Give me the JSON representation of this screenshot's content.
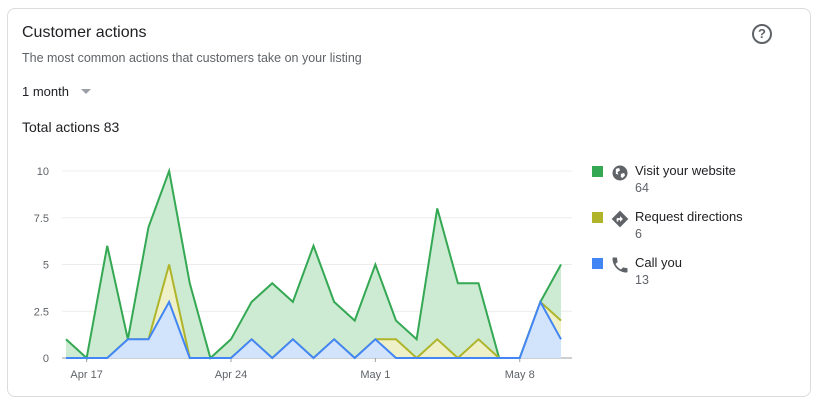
{
  "card": {
    "title": "Customer actions",
    "subtitle": "The most common actions that customers take on your listing",
    "help_icon": "help-circle-icon",
    "help_glyph": "?",
    "period_label": "1 month",
    "total_label": "Total actions 83"
  },
  "chart_data": {
    "type": "area",
    "title": "",
    "x": [
      "Apr 16",
      "Apr 17",
      "Apr 18",
      "Apr 19",
      "Apr 20",
      "Apr 21",
      "Apr 22",
      "Apr 23",
      "Apr 24",
      "Apr 25",
      "Apr 26",
      "Apr 27",
      "Apr 28",
      "Apr 29",
      "Apr 30",
      "May 1",
      "May 2",
      "May 3",
      "May 4",
      "May 5",
      "May 6",
      "May 7",
      "May 8",
      "May 9",
      "May 10"
    ],
    "x_tick_labels": [
      "Apr 17",
      "Apr 24",
      "May 1",
      "May 8"
    ],
    "y_tick_labels": [
      "0",
      "2.5",
      "5",
      "7.5",
      "10"
    ],
    "ylim": [
      0,
      10
    ],
    "grid": true,
    "legend_position": "right",
    "series": [
      {
        "name": "Visit your website",
        "color": "#34a853",
        "fill": "#cdebd3",
        "values": [
          1,
          0,
          6,
          1,
          7,
          10,
          4,
          0,
          1,
          3,
          4,
          3,
          6,
          3,
          2,
          5,
          2,
          1,
          8,
          4,
          4,
          0,
          0,
          3,
          5
        ]
      },
      {
        "name": "Request directions",
        "color": "#afb42b",
        "fill": "#eef0c8",
        "values": [
          0,
          0,
          0,
          1,
          1,
          5,
          0,
          0,
          0,
          1,
          0,
          1,
          0,
          1,
          0,
          1,
          1,
          0,
          1,
          0,
          1,
          0,
          0,
          3,
          2
        ]
      },
      {
        "name": "Call you",
        "color": "#4285f4",
        "fill": "#d2e3fc",
        "values": [
          0,
          0,
          0,
          1,
          1,
          3,
          0,
          0,
          0,
          1,
          0,
          1,
          0,
          1,
          0,
          1,
          0,
          0,
          0,
          0,
          0,
          0,
          0,
          3,
          1
        ]
      }
    ]
  },
  "legend": [
    {
      "label": "Visit your website",
      "count": "64",
      "color": "#34a853",
      "icon": "globe-icon"
    },
    {
      "label": "Request directions",
      "count": "6",
      "color": "#afb42b",
      "icon": "directions-icon"
    },
    {
      "label": "Call you",
      "count": "13",
      "color": "#4285f4",
      "icon": "phone-icon"
    }
  ]
}
